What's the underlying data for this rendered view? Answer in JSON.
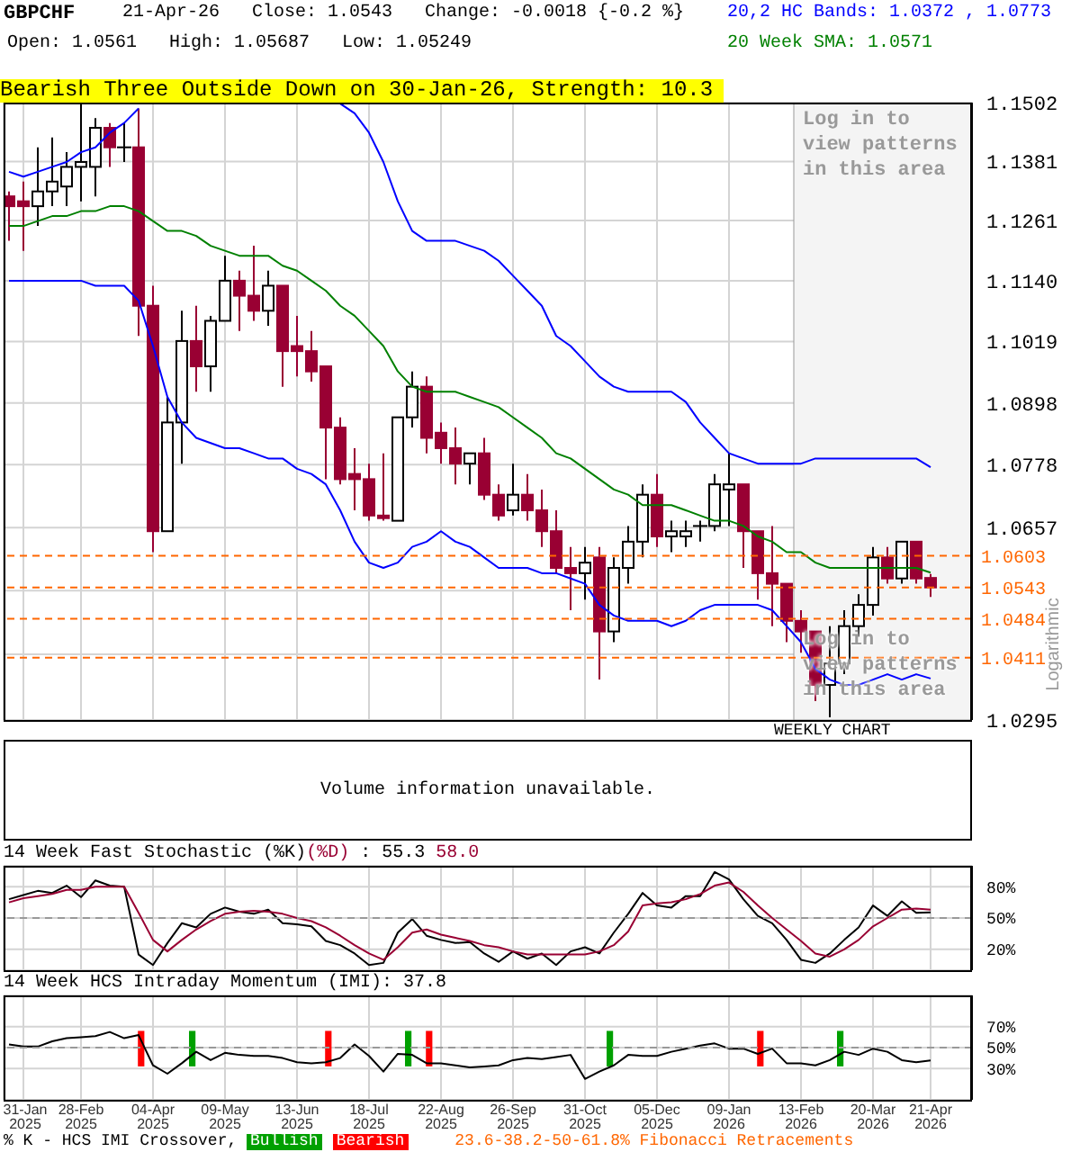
{
  "chart_data": [
    {
      "type": "candlestick",
      "title": "GBPCHF",
      "subtitle": "21-Apr-26   Close: 1.0543   Change: -0.0018 {-0.2 %}",
      "ylabel": "Logarithmic",
      "log": true,
      "grid": true,
      "legend": "top right",
      "tick_labels": "y",
      "categories": [
        null,
        "31-Jan\n2025",
        null,
        null,
        null,
        "28-Feb\n2025",
        null,
        null,
        null,
        null,
        "04-Apr\n2025",
        null,
        null,
        null,
        null,
        "09-May\n2025",
        null,
        null,
        null,
        null,
        "13-Jun\n2025",
        null,
        null,
        null,
        null,
        "18-Jul\n2025",
        null,
        null,
        null,
        null,
        "22-Aug\n2025",
        null,
        null,
        null,
        null,
        "26-Sep\n2025",
        null,
        null,
        null,
        null,
        "31-Oct\n2025",
        null,
        null,
        null,
        null,
        "05-Dec\n2025",
        null,
        null,
        null,
        null,
        "09-Jan\n2026",
        null,
        null,
        null,
        null,
        "13-Feb\n2026",
        null,
        null,
        null,
        null,
        "20-Mar\n2026",
        null,
        null,
        null,
        "21-Apr\n2026"
      ],
      "ohlc": [
        [
          1.131,
          1.132,
          1.122,
          1.129
        ],
        [
          1.13,
          1.134,
          1.12,
          1.129
        ],
        [
          1.129,
          1.141,
          1.125,
          1.132
        ],
        [
          1.132,
          1.143,
          1.129,
          1.134
        ],
        [
          1.133,
          1.14,
          1.129,
          1.137
        ],
        [
          1.137,
          1.15,
          1.13,
          1.138
        ],
        [
          1.137,
          1.147,
          1.131,
          1.145
        ],
        [
          1.145,
          1.146,
          1.137,
          1.141
        ],
        [
          1.141,
          1.146,
          1.138,
          1.141
        ],
        [
          1.141,
          1.149,
          1.103,
          1.109
        ],
        [
          1.109,
          1.113,
          1.061,
          1.065
        ],
        [
          1.065,
          1.091,
          1.065,
          1.086
        ],
        [
          1.086,
          1.108,
          1.078,
          1.102
        ],
        [
          1.102,
          1.109,
          1.092,
          1.097
        ],
        [
          1.097,
          1.107,
          1.092,
          1.106
        ],
        [
          1.106,
          1.119,
          1.106,
          1.114
        ],
        [
          1.114,
          1.116,
          1.104,
          1.111
        ],
        [
          1.111,
          1.121,
          1.106,
          1.108
        ],
        [
          1.108,
          1.116,
          1.105,
          1.113
        ],
        [
          1.113,
          1.113,
          1.093,
          1.1
        ],
        [
          1.101,
          1.107,
          1.095,
          1.1
        ],
        [
          1.1,
          1.104,
          1.094,
          1.096
        ],
        [
          1.097,
          1.097,
          1.075,
          1.085
        ],
        [
          1.085,
          1.087,
          1.074,
          1.075
        ],
        [
          1.076,
          1.081,
          1.069,
          1.075
        ],
        [
          1.075,
          1.078,
          1.067,
          1.068
        ],
        [
          1.068,
          1.08,
          1.067,
          1.0675
        ],
        [
          1.067,
          1.087,
          1.067,
          1.087
        ],
        [
          1.087,
          1.096,
          1.085,
          1.093
        ],
        [
          1.093,
          1.095,
          1.08,
          1.083
        ],
        [
          1.084,
          1.086,
          1.078,
          1.081
        ],
        [
          1.081,
          1.085,
          1.074,
          1.078
        ],
        [
          1.078,
          1.08,
          1.074,
          1.08
        ],
        [
          1.08,
          1.083,
          1.071,
          1.072
        ],
        [
          1.072,
          1.074,
          1.067,
          1.068
        ],
        [
          1.069,
          1.078,
          1.068,
          1.072
        ],
        [
          1.072,
          1.076,
          1.067,
          1.069
        ],
        [
          1.069,
          1.073,
          1.062,
          1.065
        ],
        [
          1.065,
          1.069,
          1.057,
          1.058
        ],
        [
          1.058,
          1.062,
          1.05,
          1.057
        ],
        [
          1.057,
          1.062,
          1.052,
          1.059
        ],
        [
          1.06,
          1.062,
          1.037,
          1.046
        ],
        [
          1.046,
          1.06,
          1.044,
          1.058
        ],
        [
          1.058,
          1.066,
          1.055,
          1.063
        ],
        [
          1.063,
          1.074,
          1.06,
          1.072
        ],
        [
          1.072,
          1.076,
          1.062,
          1.064
        ],
        [
          1.064,
          1.067,
          1.061,
          1.065
        ],
        [
          1.064,
          1.067,
          1.062,
          1.065
        ],
        [
          1.066,
          1.067,
          1.063,
          1.066
        ],
        [
          1.066,
          1.076,
          1.065,
          1.074
        ],
        [
          1.073,
          1.08,
          1.066,
          1.074
        ],
        [
          1.074,
          1.074,
          1.058,
          1.065
        ],
        [
          1.065,
          1.065,
          1.052,
          1.057
        ],
        [
          1.057,
          1.066,
          1.047,
          1.055
        ],
        [
          1.055,
          1.055,
          1.044,
          1.048
        ],
        [
          1.048,
          1.05,
          1.042,
          1.046
        ],
        [
          1.046,
          1.046,
          1.033,
          1.036
        ],
        [
          1.036,
          1.047,
          1.03,
          1.04
        ],
        [
          1.04,
          1.05,
          1.038,
          1.047
        ],
        [
          1.047,
          1.053,
          1.045,
          1.051
        ],
        [
          1.051,
          1.062,
          1.049,
          1.06
        ],
        [
          1.06,
          1.062,
          1.055,
          1.056
        ],
        [
          1.056,
          1.063,
          1.055,
          1.063
        ],
        [
          1.063,
          1.063,
          1.055,
          1.056
        ],
        [
          1.0561,
          1.05687,
          1.05249,
          1.0543
        ]
      ],
      "series": [
        {
          "type": "line",
          "name": "20,2 HC Bands: 1.0372 , 1.0773",
          "color": "#0000ff",
          "values": [
            1.136,
            1.135,
            1.136,
            1.137,
            1.138,
            1.14,
            1.141,
            1.144,
            1.146,
            1.149,
            null,
            null,
            null,
            null,
            null,
            null,
            null,
            null,
            null,
            null,
            null,
            null,
            null,
            1.15,
            1.148,
            1.144,
            1.138,
            1.13,
            1.124,
            1.122,
            1.122,
            1.122,
            1.121,
            1.12,
            1.118,
            1.115,
            1.112,
            1.109,
            1.103,
            1.101,
            1.098,
            1.095,
            1.093,
            1.092,
            1.092,
            1.092,
            1.092,
            1.09,
            1.086,
            1.083,
            1.08,
            1.079,
            1.078,
            1.078,
            1.078,
            1.078,
            1.079,
            1.079,
            1.079,
            1.079,
            1.079,
            1.079,
            1.079,
            1.079,
            1.0773
          ]
        },
        {
          "type": "line",
          "color": "#0000ff",
          "values": [
            1.114,
            1.114,
            1.114,
            1.114,
            1.114,
            1.114,
            1.113,
            1.113,
            1.113,
            1.11,
            1.101,
            1.091,
            1.086,
            1.083,
            1.082,
            1.081,
            1.081,
            1.08,
            1.079,
            1.079,
            1.077,
            1.076,
            1.074,
            1.069,
            1.063,
            1.059,
            1.058,
            1.059,
            1.062,
            1.063,
            1.065,
            1.063,
            1.062,
            1.06,
            1.058,
            1.058,
            1.058,
            1.057,
            1.057,
            1.056,
            1.055,
            1.051,
            1.049,
            1.048,
            1.048,
            1.048,
            1.047,
            1.048,
            1.05,
            1.051,
            1.051,
            1.051,
            1.051,
            1.05,
            1.047,
            1.044,
            1.039,
            1.037,
            1.036,
            1.036,
            1.037,
            1.038,
            1.037,
            1.038,
            1.0372
          ]
        },
        {
          "type": "line",
          "name": "20 Week SMA: 1.0571",
          "color": "#008000",
          "values": [
            1.125,
            1.125,
            1.126,
            1.127,
            1.127,
            1.128,
            1.128,
            1.129,
            1.129,
            1.128,
            1.126,
            1.124,
            1.124,
            1.123,
            1.121,
            1.12,
            1.119,
            1.119,
            1.119,
            1.117,
            1.116,
            1.114,
            1.112,
            1.109,
            1.107,
            1.104,
            1.101,
            1.096,
            1.093,
            1.092,
            1.092,
            1.092,
            1.091,
            1.09,
            1.089,
            1.087,
            1.085,
            1.083,
            1.08,
            1.079,
            1.077,
            1.075,
            1.073,
            1.072,
            1.07,
            1.07,
            1.07,
            1.069,
            1.068,
            1.067,
            1.067,
            1.066,
            1.064,
            1.063,
            1.061,
            1.061,
            1.059,
            1.058,
            1.058,
            1.058,
            1.058,
            1.058,
            1.058,
            1.058,
            1.0571
          ]
        }
      ],
      "ylim": [
        1.0295,
        1.1502
      ],
      "yticks": [
        1.0295,
        {
          "value": 1.0417,
          "label": null
        },
        {
          "value": 1.0537,
          "label": null
        },
        1.0657,
        1.0778,
        1.0898,
        1.1019,
        {
          "value": 1.114,
          "label": "1.1140"
        },
        1.1261,
        1.1381,
        1.1502
      ],
      "ref_lines": [
        {
          "axis": "y",
          "value": 1.0603,
          "label": "1.0603",
          "color": "#ff6600",
          "line_style": "dashed"
        },
        {
          "axis": "y",
          "value": 1.0543,
          "label": "1.0543",
          "color": "#ff6600",
          "line_style": "dashed"
        },
        {
          "axis": "y",
          "value": 1.0484,
          "label": "1.0484",
          "color": "#ff6600",
          "line_style": "dashed"
        },
        {
          "axis": "y",
          "value": 1.0411,
          "label": "1.0411",
          "color": "#ff6600",
          "line_style": "dashed"
        }
      ],
      "bands": [
        {
          "axis": "x",
          "from": "13-Feb\n2026",
          "to": "21-Apr\n2026",
          "label": "Log in to view patterns in this area",
          "color": "#f4f4f4"
        }
      ],
      "annotations": [
        "Open: 1.0561   High: 1.05687   Low: 1.05249",
        "Bearish Three Outside Down on 30-Jan-26, Strength: 10.3",
        "Log in to view patterns in this area",
        "WEEKLY CHART"
      ]
    },
    {
      "type": "other",
      "annotations": [
        "Volume information unavailable."
      ]
    },
    {
      "type": "line",
      "title": "14 Week Fast Stochastic",
      "legend": "top left",
      "grid": true,
      "tick_labels": "y",
      "categories": [
        null,
        "31-Jan\n2025",
        null,
        null,
        null,
        "28-Feb\n2025",
        null,
        null,
        null,
        null,
        "04-Apr\n2025",
        null,
        null,
        null,
        null,
        "09-May\n2025",
        null,
        null,
        null,
        null,
        "13-Jun\n2025",
        null,
        null,
        null,
        null,
        "18-Jul\n2025",
        null,
        null,
        null,
        null,
        "22-Aug\n2025",
        null,
        null,
        null,
        null,
        "26-Sep\n2025",
        null,
        null,
        null,
        null,
        "31-Oct\n2025",
        null,
        null,
        null,
        null,
        "05-Dec\n2025",
        null,
        null,
        null,
        null,
        "09-Jan\n2026",
        null,
        null,
        null,
        null,
        "13-Feb\n2026",
        null,
        null,
        null,
        null,
        "20-Mar\n2026",
        null,
        null,
        null,
        "21-Apr\n2026"
      ],
      "series": [
        {
          "type": "line",
          "name": "(%K)",
          "color": "#000000",
          "values": [
            68,
            72,
            76,
            74,
            81,
            70,
            86,
            81,
            80,
            15,
            5,
            26,
            45,
            41,
            54,
            60,
            56,
            54,
            58,
            45,
            44,
            42,
            28,
            24,
            16,
            5,
            7,
            36,
            49,
            33,
            29,
            26,
            27,
            16,
            8,
            18,
            11,
            16,
            5,
            18,
            22,
            16,
            36,
            54,
            74,
            62,
            60,
            71,
            71,
            94,
            87,
            68,
            52,
            45,
            29,
            10,
            7,
            16,
            29,
            41,
            62,
            52,
            66,
            55,
            55.3
          ]
        },
        {
          "type": "line",
          "name": "(%D)",
          "color": "#990033",
          "values": [
            65,
            69,
            71,
            73,
            77,
            77,
            80,
            80,
            80,
            55,
            29,
            18,
            29,
            39,
            47,
            54,
            56,
            57,
            56,
            54,
            50,
            47,
            41,
            33,
            24,
            16,
            10,
            22,
            36,
            39,
            34,
            31,
            28,
            24,
            22,
            18,
            15,
            15,
            15,
            15,
            15,
            18,
            24,
            37,
            62,
            64,
            65,
            68,
            73,
            81,
            84,
            75,
            62,
            50,
            39,
            28,
            16,
            13,
            20,
            29,
            42,
            50,
            58,
            59,
            58.0
          ]
        }
      ],
      "ylim": [
        0,
        100
      ],
      "yticks": [
        {
          "value": 20,
          "label": "20%"
        },
        {
          "value": 50,
          "label": "50%"
        },
        {
          "value": 80,
          "label": "80%"
        }
      ],
      "ref_lines": [
        {
          "axis": "y",
          "value": 50,
          "color": "#999999",
          "line_style": "dashed"
        }
      ],
      "annotations": [
        ": 55.3",
        "58.0"
      ]
    },
    {
      "type": "line",
      "title": "14 Week HCS Intraday Momentum (IMI): 37.8",
      "legend": "bottom",
      "grid": true,
      "categories": [
        null,
        "31-Jan\n2025",
        null,
        null,
        null,
        "28-Feb\n2025",
        null,
        null,
        null,
        null,
        "04-Apr\n2025",
        null,
        null,
        null,
        null,
        "09-May\n2025",
        null,
        null,
        null,
        null,
        "13-Jun\n2025",
        null,
        null,
        null,
        null,
        "18-Jul\n2025",
        null,
        null,
        null,
        null,
        "22-Aug\n2025",
        null,
        null,
        null,
        null,
        "26-Sep\n2025",
        null,
        null,
        null,
        null,
        "31-Oct\n2025",
        null,
        null,
        null,
        null,
        "05-Dec\n2025",
        null,
        null,
        null,
        null,
        "09-Jan\n2026",
        null,
        null,
        null,
        null,
        "13-Feb\n2026",
        null,
        null,
        null,
        null,
        "20-Mar\n2026",
        null,
        null,
        null,
        "21-Apr\n2026"
      ],
      "series": [
        {
          "type": "line",
          "color": "#000000",
          "values": [
            53,
            51,
            51,
            56,
            59,
            60,
            61,
            65,
            59,
            62,
            33,
            25,
            35,
            46,
            38,
            45,
            43,
            42,
            42,
            40,
            36,
            35,
            36,
            40,
            53,
            42,
            27,
            44,
            43,
            35,
            35,
            33,
            31,
            32,
            33,
            38,
            40,
            39,
            41,
            43,
            20,
            27,
            33,
            43,
            42,
            42,
            46,
            49,
            52,
            54,
            49,
            49,
            44,
            49,
            35,
            35,
            33,
            38,
            46,
            43,
            49,
            46,
            38,
            36,
            37.8
          ]
        },
        {
          "type": "bar",
          "name": "Bullish",
          "color": "#00a000",
          "base": [
            null,
            null,
            null,
            null,
            null,
            null,
            null,
            null,
            null,
            null,
            null,
            null,
            null,
            32,
            null,
            null,
            null,
            null,
            null,
            null,
            null,
            null,
            null,
            null,
            null,
            null,
            null,
            null,
            32,
            null,
            null,
            null,
            null,
            null,
            null,
            null,
            null,
            null,
            null,
            null,
            null,
            null,
            32,
            null,
            null,
            null,
            null,
            null,
            null,
            null,
            null,
            null,
            null,
            null,
            null,
            null,
            null,
            null,
            32,
            null,
            null,
            null,
            null,
            null,
            null
          ],
          "values": [
            null,
            null,
            null,
            null,
            null,
            null,
            null,
            null,
            null,
            null,
            null,
            null,
            null,
            34,
            null,
            null,
            null,
            null,
            null,
            null,
            null,
            null,
            null,
            null,
            null,
            null,
            null,
            null,
            34,
            null,
            null,
            null,
            null,
            null,
            null,
            null,
            null,
            null,
            null,
            null,
            null,
            null,
            34,
            null,
            null,
            null,
            null,
            null,
            null,
            null,
            null,
            null,
            null,
            null,
            null,
            null,
            null,
            null,
            34,
            null,
            null,
            null,
            null,
            null,
            null
          ]
        },
        {
          "type": "bar",
          "name": "Bearish",
          "color": "#ff0000",
          "base": [
            null,
            null,
            null,
            null,
            null,
            null,
            null,
            null,
            null,
            32,
            null,
            null,
            null,
            null,
            null,
            null,
            null,
            null,
            null,
            null,
            null,
            null,
            32,
            null,
            null,
            null,
            null,
            null,
            null,
            32,
            null,
            null,
            null,
            null,
            null,
            null,
            null,
            null,
            null,
            null,
            null,
            null,
            null,
            null,
            null,
            null,
            null,
            null,
            null,
            null,
            null,
            null,
            32,
            null,
            null,
            null,
            null,
            null,
            null,
            null,
            null,
            null,
            null,
            null,
            null
          ],
          "values": [
            null,
            null,
            null,
            null,
            null,
            null,
            null,
            null,
            null,
            34,
            null,
            null,
            null,
            null,
            null,
            null,
            null,
            null,
            null,
            null,
            null,
            null,
            34,
            null,
            null,
            null,
            null,
            null,
            null,
            34,
            null,
            null,
            null,
            null,
            null,
            null,
            null,
            null,
            null,
            null,
            null,
            null,
            null,
            null,
            null,
            null,
            null,
            null,
            null,
            null,
            null,
            null,
            34,
            null,
            null,
            null,
            null,
            null,
            null,
            null,
            null,
            null,
            null,
            null,
            null
          ]
        }
      ],
      "ylim": [
        0,
        100
      ],
      "yticks": [
        {
          "value": 30,
          "label": "30%"
        },
        {
          "value": 50,
          "label": "50%"
        },
        {
          "value": 70,
          "label": "70%"
        }
      ],
      "ref_lines": [
        {
          "axis": "y",
          "value": 50,
          "color": "#999999",
          "line_style": "dashed"
        }
      ],
      "annotations": [
        "% K - HCS IMI Crossover,",
        "23.6-38.2-50-61.8% Fibonacci Retracements"
      ]
    }
  ]
}
